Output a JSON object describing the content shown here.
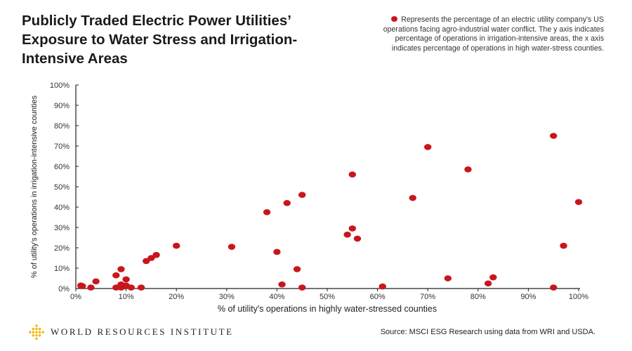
{
  "title": "Publicly Traded Electric Power Utilities’ Exposure to Water Stress and Irrigation-Intensive Areas",
  "legend": {
    "text": "Represents the percentage of an electric utility company's US operations facing agro-industrial water conflict. The y axis indicates percentage of operations in irrigation-intensive areas, the x axis indicates percentage of operations in high water-stress counties.",
    "color": "#c8161d"
  },
  "logo": {
    "name": "WORLD RESOURCES INSTITUTE",
    "icon": "wri-logo-icon",
    "color": "#f4b400"
  },
  "source": "Source: MSCI ESG Research using data from WRI and USDA.",
  "chart_data": {
    "type": "scatter",
    "xlabel": "% of utility's operations in highly water-stressed counties",
    "ylabel": "% of utility's operations in irrigation-intensive counties",
    "xlim": [
      0,
      100
    ],
    "ylim": [
      0,
      100
    ],
    "x_ticks": [
      "0%",
      "10%",
      "20%",
      "30%",
      "40%",
      "50%",
      "60%",
      "70%",
      "80%",
      "90%",
      "100%"
    ],
    "y_ticks": [
      "0%",
      "10%",
      "20%",
      "30%",
      "40%",
      "50%",
      "60%",
      "70%",
      "80%",
      "90%",
      "100%"
    ],
    "grid": false,
    "point_color": "#c8161d",
    "series": [
      {
        "points": [
          {
            "x": 1,
            "y": 1.5
          },
          {
            "x": 1.3,
            "y": 1.2
          },
          {
            "x": 3,
            "y": 0.5
          },
          {
            "x": 4,
            "y": 3.5
          },
          {
            "x": 8,
            "y": 0.5
          },
          {
            "x": 8,
            "y": 6.5
          },
          {
            "x": 9,
            "y": 9.5
          },
          {
            "x": 9,
            "y": 2
          },
          {
            "x": 9,
            "y": 0.5
          },
          {
            "x": 9.5,
            "y": 1
          },
          {
            "x": 10,
            "y": 4.5
          },
          {
            "x": 10,
            "y": 1.5
          },
          {
            "x": 11,
            "y": 0.5
          },
          {
            "x": 13,
            "y": 0.5
          },
          {
            "x": 14,
            "y": 13.5
          },
          {
            "x": 15,
            "y": 15
          },
          {
            "x": 16,
            "y": 16.5
          },
          {
            "x": 20,
            "y": 21
          },
          {
            "x": 31,
            "y": 20.5
          },
          {
            "x": 38,
            "y": 37.5
          },
          {
            "x": 40,
            "y": 18
          },
          {
            "x": 41,
            "y": 2
          },
          {
            "x": 42,
            "y": 42
          },
          {
            "x": 44,
            "y": 9.5
          },
          {
            "x": 45,
            "y": 46
          },
          {
            "x": 45,
            "y": 0.5
          },
          {
            "x": 54,
            "y": 26.5
          },
          {
            "x": 55,
            "y": 29.5
          },
          {
            "x": 55,
            "y": 56
          },
          {
            "x": 56,
            "y": 24.5
          },
          {
            "x": 61,
            "y": 1
          },
          {
            "x": 67,
            "y": 44.5
          },
          {
            "x": 70,
            "y": 69.5
          },
          {
            "x": 74,
            "y": 5
          },
          {
            "x": 78,
            "y": 58.5
          },
          {
            "x": 82,
            "y": 2.5
          },
          {
            "x": 83,
            "y": 5.5
          },
          {
            "x": 95,
            "y": 75
          },
          {
            "x": 95,
            "y": 0.5
          },
          {
            "x": 97,
            "y": 21
          },
          {
            "x": 100,
            "y": 42.5
          }
        ]
      }
    ]
  }
}
